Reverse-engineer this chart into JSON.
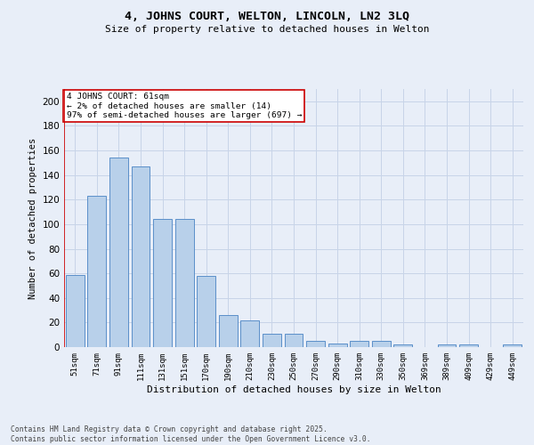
{
  "title": "4, JOHNS COURT, WELTON, LINCOLN, LN2 3LQ",
  "subtitle": "Size of property relative to detached houses in Welton",
  "xlabel": "Distribution of detached houses by size in Welton",
  "ylabel": "Number of detached properties",
  "bar_color": "#b8d0ea",
  "bar_edge_color": "#5b8fc9",
  "categories": [
    "51sqm",
    "71sqm",
    "91sqm",
    "111sqm",
    "131sqm",
    "151sqm",
    "170sqm",
    "190sqm",
    "210sqm",
    "230sqm",
    "250sqm",
    "270sqm",
    "290sqm",
    "310sqm",
    "330sqm",
    "350sqm",
    "369sqm",
    "389sqm",
    "409sqm",
    "429sqm",
    "449sqm"
  ],
  "values": [
    59,
    123,
    154,
    147,
    104,
    104,
    58,
    26,
    22,
    11,
    11,
    5,
    3,
    5,
    5,
    2,
    0,
    2,
    2,
    0,
    2
  ],
  "ylim": [
    0,
    210
  ],
  "yticks": [
    0,
    20,
    40,
    60,
    80,
    100,
    120,
    140,
    160,
    180,
    200
  ],
  "annotation_title": "4 JOHNS COURT: 61sqm",
  "annotation_line1": "← 2% of detached houses are smaller (14)",
  "annotation_line2": "97% of semi-detached houses are larger (697) →",
  "grid_color": "#c8d4e8",
  "background_color": "#e8eef8",
  "footer_line1": "Contains HM Land Registry data © Crown copyright and database right 2025.",
  "footer_line2": "Contains public sector information licensed under the Open Government Licence v3.0.",
  "red_line_color": "#cc0000",
  "annotation_box_color": "#ffffff"
}
